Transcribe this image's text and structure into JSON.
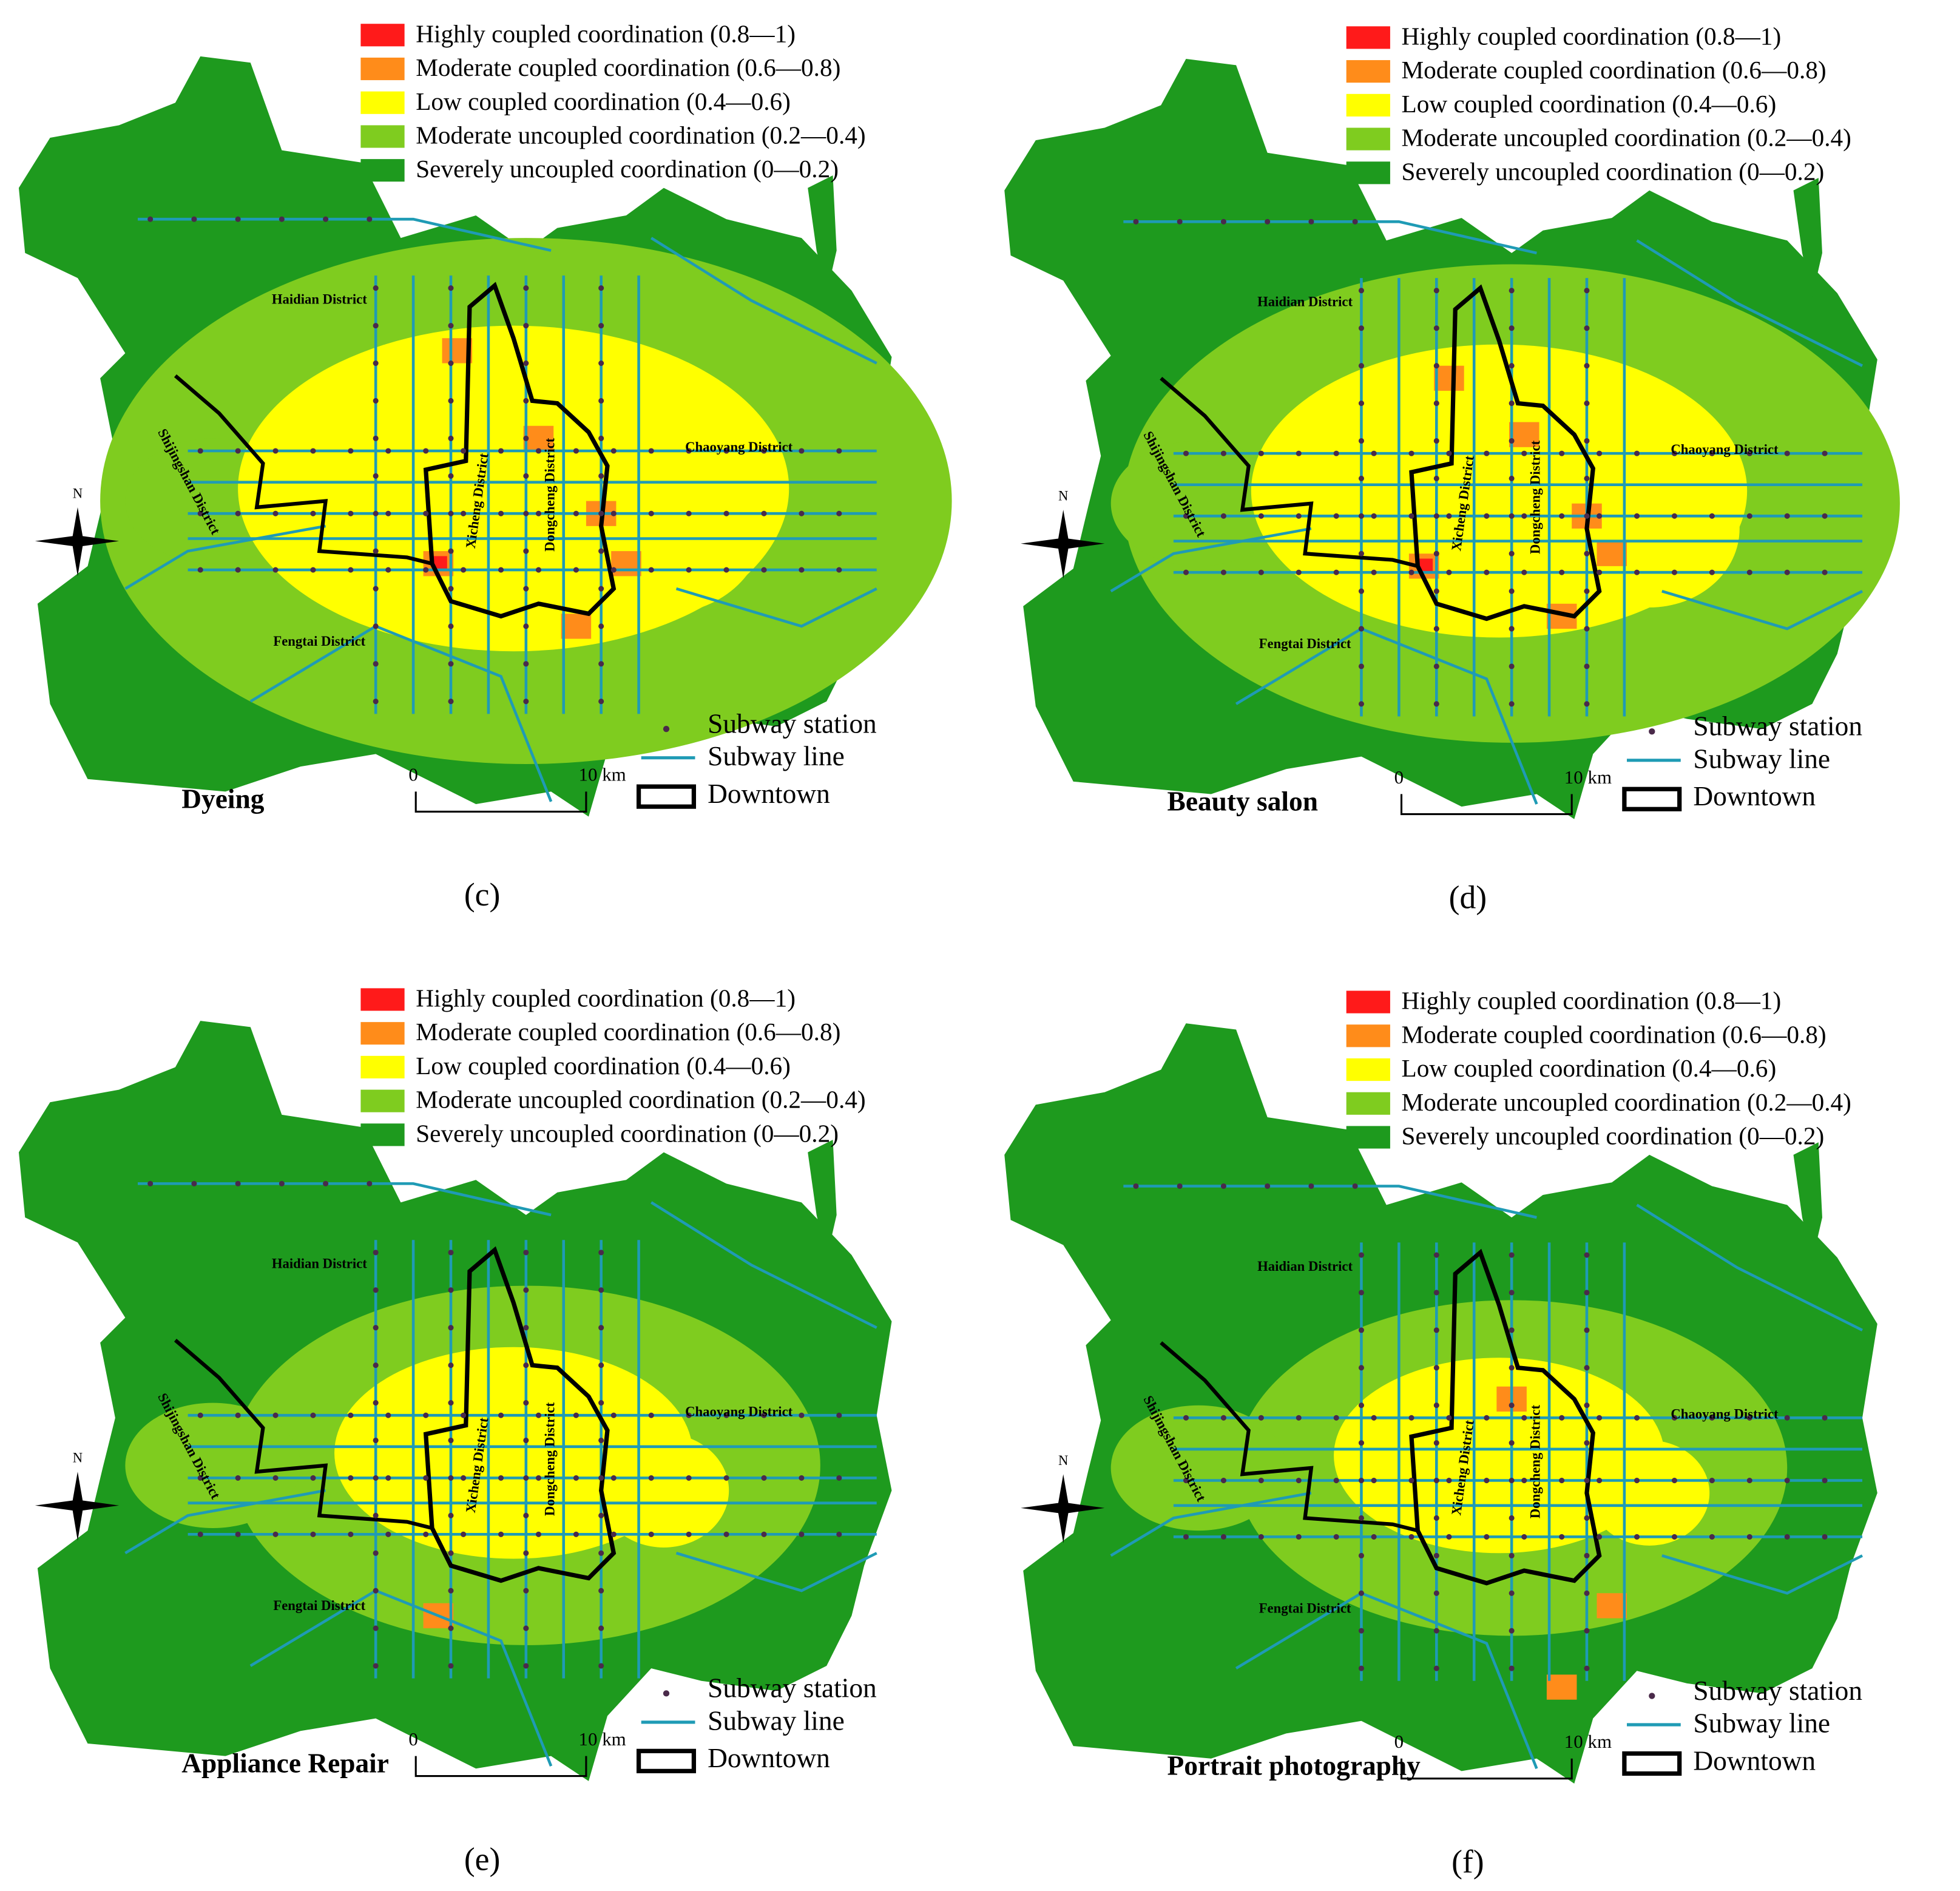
{
  "legend": {
    "items": [
      {
        "label": "Highly coupled coordination (0.8—1)",
        "color": "#ff1a1a"
      },
      {
        "label": "Moderate coupled coordination (0.6—0.8)",
        "color": "#ff8c1a"
      },
      {
        "label": "Low coupled coordination (0.4—0.6)",
        "color": "#ffff00"
      },
      {
        "label": "Moderate uncoupled coordination (0.2—0.4)",
        "color": "#7fcc1f"
      },
      {
        "label": "Severely uncoupled coordination (0—0.2)",
        "color": "#1e9a1e"
      }
    ],
    "station": "Subway station",
    "line": "Subway line",
    "downtown": "Downtown"
  },
  "districts": {
    "haidian": "Haidian District",
    "shijingshan": "Shijingshan District",
    "chaoyang": "Chaoyang District",
    "xicheng": "Xicheng District",
    "dongcheng": "Dongcheng District",
    "fengtai": "Fengtai District"
  },
  "compass": "N",
  "scale": {
    "start": "0",
    "end": "10 km"
  },
  "panels": [
    {
      "title": "Dyeing",
      "label": "(c)"
    },
    {
      "title": "Beauty salon",
      "label": "(d)"
    },
    {
      "title": "Appliance Repair",
      "label": "(e)"
    },
    {
      "title": "Portrait photography",
      "label": "(f)"
    }
  ]
}
